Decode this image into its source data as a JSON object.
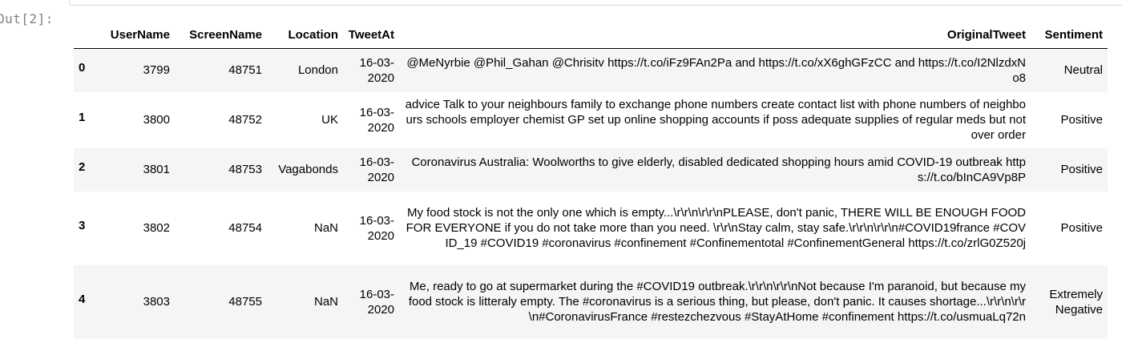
{
  "prompt": "Out[2]:",
  "columns": {
    "index": "",
    "username": "UserName",
    "screenname": "ScreenName",
    "location": "Location",
    "tweetat": "TweetAt",
    "originaltweet": "OriginalTweet",
    "sentiment": "Sentiment"
  },
  "rows": [
    {
      "index": "0",
      "username": "3799",
      "screenname": "48751",
      "location": "London",
      "tweetat": "16-03-2020",
      "originaltweet": "@MeNyrbie @Phil_Gahan @Chrisitv https://t.co/iFz9FAn2Pa and https://t.co/xX6ghGFzCC and https://t.co/I2NlzdxNo8",
      "sentiment": "Neutral"
    },
    {
      "index": "1",
      "username": "3800",
      "screenname": "48752",
      "location": "UK",
      "tweetat": "16-03-2020",
      "originaltweet": "advice Talk to your neighbours family to exchange phone numbers create contact list with phone numbers of neighbours schools employer chemist GP set up online shopping accounts if poss adequate supplies of regular meds but not over order",
      "sentiment": "Positive"
    },
    {
      "index": "2",
      "username": "3801",
      "screenname": "48753",
      "location": "Vagabonds",
      "tweetat": "16-03-2020",
      "originaltweet": "Coronavirus Australia: Woolworths to give elderly, disabled dedicated shopping hours amid COVID-19 outbreak https://t.co/bInCA9Vp8P",
      "sentiment": "Positive"
    },
    {
      "index": "3",
      "username": "3802",
      "screenname": "48754",
      "location": "NaN",
      "tweetat": "16-03-2020",
      "originaltweet": "My food stock is not the only one which is empty...\\r\\r\\n\\r\\r\\nPLEASE, don't panic, THERE WILL BE ENOUGH FOOD FOR EVERYONE if you do not take more than you need. \\r\\r\\nStay calm, stay safe.\\r\\r\\n\\r\\r\\n#COVID19france #COVID_19 #COVID19 #coronavirus #confinement #Confinementotal #ConfinementGeneral https://t.co/zrlG0Z520j",
      "sentiment": "Positive"
    },
    {
      "index": "4",
      "username": "3803",
      "screenname": "48755",
      "location": "NaN",
      "tweetat": "16-03-2020",
      "originaltweet": "Me, ready to go at supermarket during the #COVID19 outbreak.\\r\\r\\n\\r\\r\\nNot because I'm paranoid, but because my food stock is litteraly empty. The #coronavirus is a serious thing, but please, don't panic. It causes shortage...\\r\\r\\n\\r\\r\\n#CoronavirusFrance #restezchezvous #StayAtHome #confinement https://t.co/usmuaLq72n",
      "sentiment": "Extremely Negative"
    }
  ]
}
